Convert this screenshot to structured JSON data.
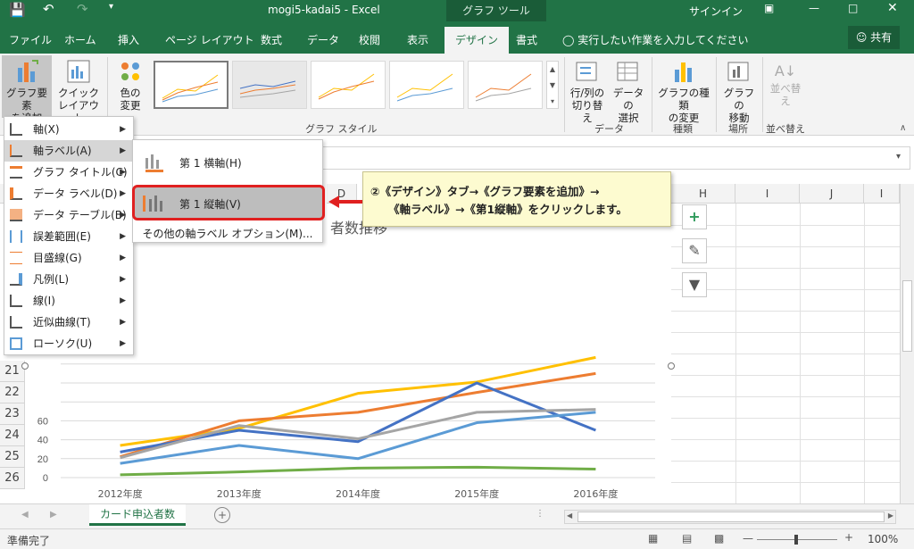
{
  "titlebar": {
    "doc_title": "mogi5-kadai5  -  Excel",
    "context_label": "グラフ ツール",
    "signin": "サインイン"
  },
  "tabs": [
    "ファイル",
    "ホーム",
    "挿入",
    "ページ レイアウト",
    "数式",
    "データ",
    "校閲",
    "表示",
    "デザイン",
    "書式"
  ],
  "tell_me": "実行したい作業を入力してください",
  "share": "共有",
  "ribbon": {
    "add_element": [
      "グラフ要素",
      "を追加"
    ],
    "quick_layout": [
      "クイック",
      "レイアウト"
    ],
    "change_colors": [
      "色の",
      "変更"
    ],
    "switch_row_col": [
      "行/列の",
      "切り替え"
    ],
    "select_data": [
      "データの",
      "選択"
    ],
    "change_type": [
      "グラフの種類",
      "の変更"
    ],
    "move_chart": [
      "グラフの",
      "移動"
    ],
    "sort": [
      "並べ替",
      "え"
    ],
    "groups": {
      "styles": "グラフ スタイル",
      "data": "データ",
      "type": "種類",
      "location": "場所",
      "sort": "並べ替え"
    }
  },
  "columns": [
    "D",
    "H",
    "I",
    "J",
    "I"
  ],
  "rows": [
    "21",
    "22",
    "23",
    "24",
    "25",
    "26"
  ],
  "menu": {
    "items": [
      "軸(X)",
      "軸ラベル(A)",
      "グラフ タイトル(C)",
      "データ ラベル(D)",
      "データ テーブル(B)",
      "誤差範囲(E)",
      "目盛線(G)",
      "凡例(L)",
      "線(I)",
      "近似曲線(T)",
      "ローソク(U)"
    ],
    "submenu": [
      "第 1 横軸(H)",
      "第 1 縦軸(V)",
      "その他の軸ラベル オプション(M)..."
    ]
  },
  "callout": {
    "line1": "②《デザイン》タブ→《グラフ要素を追加》→",
    "line2": "《軸ラベル》→《第1縦軸》をクリックします。"
  },
  "chart_title_fragment": "者数推移",
  "chart_data": {
    "type": "line",
    "categories": [
      "2012年度",
      "2013年度",
      "2014年度",
      "2015年度",
      "2016年度"
    ],
    "y_ticks": [
      "0",
      "20",
      "40",
      "60"
    ],
    "ylim": [
      0,
      120
    ],
    "series": [
      {
        "color": "#ffc000",
        "values": [
          34,
          52,
          89,
          101,
          127
        ]
      },
      {
        "color": "#ed7d31",
        "values": [
          22,
          60,
          69,
          90,
          110
        ]
      },
      {
        "color": "#4472c4",
        "values": [
          27,
          50,
          38,
          100,
          50
        ]
      },
      {
        "color": "#a5a5a5",
        "values": [
          21,
          55,
          41,
          69,
          72
        ]
      },
      {
        "color": "#5b9bd5",
        "values": [
          15,
          34,
          20,
          58,
          69
        ]
      },
      {
        "color": "#70ad47",
        "values": [
          3,
          6,
          10,
          11,
          9
        ]
      }
    ]
  },
  "sheet_tab": "カード申込者数",
  "status": "準備完了",
  "zoom": "100%"
}
